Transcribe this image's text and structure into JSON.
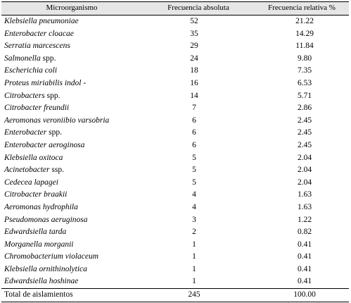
{
  "headers": {
    "organism": "Microorganismo",
    "absolute": "Frecuencia absoluta",
    "relative": "Frecuencia relativa %"
  },
  "rows": [
    {
      "name": "Klebsiella pneumoniae",
      "suffix": "",
      "abs": "52",
      "rel": "21.22"
    },
    {
      "name": "Enterobacter cloacae",
      "suffix": "",
      "abs": "35",
      "rel": "14.29"
    },
    {
      "name": "Serratia marcescens",
      "suffix": "",
      "abs": "29",
      "rel": "11.84"
    },
    {
      "name": "Salmonella",
      "suffix": " spp.",
      "abs": "24",
      "rel": "9.80"
    },
    {
      "name": "Escherichia coli",
      "suffix": "",
      "abs": "18",
      "rel": "7.35"
    },
    {
      "name": "Proteus miriabilis indol -",
      "suffix": "",
      "abs": "16",
      "rel": "6.53"
    },
    {
      "name": "Citrobacters",
      "suffix": " spp.",
      "abs": "14",
      "rel": "5.71"
    },
    {
      "name": "Citrobacter freundii",
      "suffix": "",
      "abs": "7",
      "rel": "2.86"
    },
    {
      "name": "Aeromonas veroniibio varsobria",
      "suffix": "",
      "abs": "6",
      "rel": "2.45"
    },
    {
      "name": "Enterobacter",
      "suffix": " spp.",
      "abs": "6",
      "rel": "2.45"
    },
    {
      "name": "Enterobacter aeroginosa",
      "suffix": "",
      "abs": "6",
      "rel": "2.45"
    },
    {
      "name": "Klebsiella oxitoca",
      "suffix": "",
      "abs": "5",
      "rel": "2.04"
    },
    {
      "name": "Acinetobacter",
      "suffix": " ssp.",
      "abs": "5",
      "rel": "2.04"
    },
    {
      "name": "Cedecea lapagei",
      "suffix": "",
      "abs": "5",
      "rel": "2.04"
    },
    {
      "name": "Citrobacter braakii",
      "suffix": "",
      "abs": "4",
      "rel": "1.63"
    },
    {
      "name": "Aeromonas hydrophila",
      "suffix": "",
      "abs": "4",
      "rel": "1.63"
    },
    {
      "name": "Pseudomonas aeruginosa",
      "suffix": "",
      "abs": "3",
      "rel": "1.22"
    },
    {
      "name": "Edwardsiella tarda",
      "suffix": "",
      "abs": "2",
      "rel": "0.82"
    },
    {
      "name": "Morganella morganii",
      "suffix": "",
      "abs": "1",
      "rel": "0.41"
    },
    {
      "name": "Chromobacterium violaceum",
      "suffix": "",
      "abs": "1",
      "rel": "0.41"
    },
    {
      "name": "Klebsiella ornithinolytica",
      "suffix": "",
      "abs": "1",
      "rel": "0.41"
    },
    {
      "name": "Edwardsiella hoshinae",
      "suffix": "",
      "abs": "1",
      "rel": "0.41"
    }
  ],
  "total": {
    "label": "Total de aislamientos",
    "abs": "245",
    "rel": "100.00"
  }
}
